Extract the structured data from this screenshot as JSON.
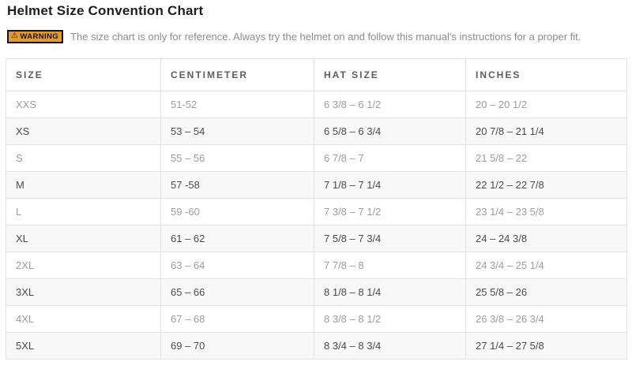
{
  "page": {
    "title": "Helmet Size Convention Chart"
  },
  "warning": {
    "badge_icon": "⚠",
    "badge_label": "WARNING",
    "text": "The size chart is only for reference. Always try the helmet on and follow this manual's instructions for a proper fit."
  },
  "table": {
    "columns": [
      "SIZE",
      "CENTIMETER",
      "HAT SIZE",
      "INCHES"
    ],
    "column_keys": [
      "size",
      "centimeter",
      "hat-size",
      "inches"
    ],
    "rows": [
      [
        "XXS",
        "51-52",
        "6 3/8 – 6 1/2",
        "20 – 20 1/2"
      ],
      [
        "XS",
        "53 – 54",
        "6 5/8 – 6 3/4",
        "20 7/8 – 21 1/4"
      ],
      [
        "S",
        "55 – 56",
        "6 7/8 – 7",
        "21 5/8 – 22"
      ],
      [
        "M",
        "57 -58",
        "7 1/8 – 7 1/4",
        "22 1/2 – 22 7/8"
      ],
      [
        "L",
        "59 -60",
        "7 3/8 – 7 1/2",
        "23 1/4 – 23 5/8"
      ],
      [
        "XL",
        "61 – 62",
        "7 5/8 – 7 3/4",
        "24 – 24 3/8"
      ],
      [
        "2XL",
        "63 – 64",
        "7 7/8 – 8",
        "24 3/4 – 25 1/4"
      ],
      [
        "3XL",
        "65 – 66",
        "8 1/8 – 8 1/4",
        "25 5/8 – 26"
      ],
      [
        "4XL",
        "67 – 68",
        "8 3/8 – 8 1/2",
        "26 3/8 – 26 3/4"
      ],
      [
        "5XL",
        "69 – 70",
        "8 3/4 – 8 3/4",
        "27 1/4 – 27 5/8"
      ]
    ]
  },
  "colors": {
    "warning_badge_bg": "#e49b2b",
    "table_border": "#e2e2e2",
    "row_text_dark": "#4a4a4a",
    "row_text_light": "#9c9c9c",
    "row_stripe_bg": "#f8f8f8"
  }
}
